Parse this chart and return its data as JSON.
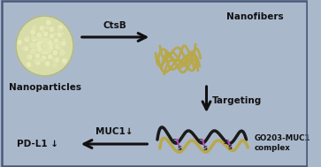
{
  "bg_color": "#aab8cc",
  "border_color": "#6677aa",
  "nanoparticle_outer": "#d4d8a8",
  "nanoparticle_inner": "#dde0b0",
  "nanoparticle_dot": "#c8cca0",
  "nanofiber_color": "#b8a84a",
  "black_strand": "#1a1a1a",
  "dashed_color": "#bb44bb",
  "arrow_color": "#111111",
  "text_color": "#111111",
  "label_nanoparticles": "Nanoparticles",
  "label_nanofibers": "Nanofibers",
  "label_ctsb": "CtsB",
  "label_targeting": "Targeting",
  "label_muc1": "MUC1↓",
  "label_pdl1": "PD-L1 ↓",
  "label_complex": "GO203-MUC1\ncomplex",
  "label_fontsize": 7.5
}
